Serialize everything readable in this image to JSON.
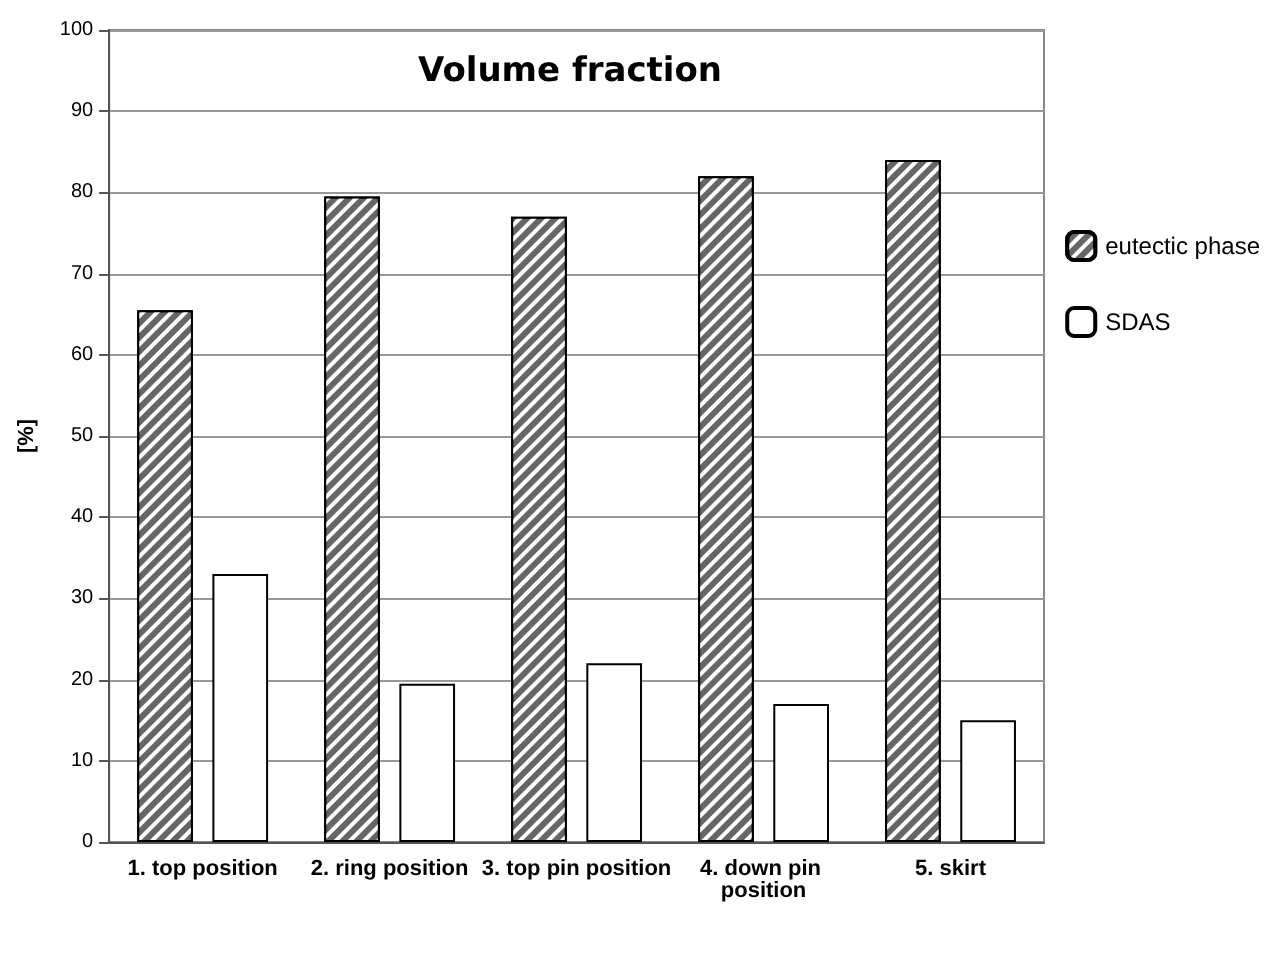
{
  "chart_data": {
    "type": "bar",
    "title": "Volume fraction",
    "ylabel": "[%]",
    "categories": [
      "1. top position",
      "2. ring position",
      "3. top pin position",
      "4. down pin position",
      "5. skirt"
    ],
    "series": [
      {
        "name": "eutectic phase",
        "color": "#666666",
        "values": [
          65.5,
          79.5,
          77,
          82,
          84
        ]
      },
      {
        "name": "SDAS",
        "color": "#ffffff",
        "values": [
          33,
          19.5,
          22,
          17,
          15
        ]
      }
    ],
    "ylim": [
      0,
      100
    ],
    "yticks": [
      0,
      10,
      20,
      30,
      40,
      50,
      60,
      70,
      80,
      90,
      100
    ],
    "grid": "y",
    "legend": "right"
  }
}
